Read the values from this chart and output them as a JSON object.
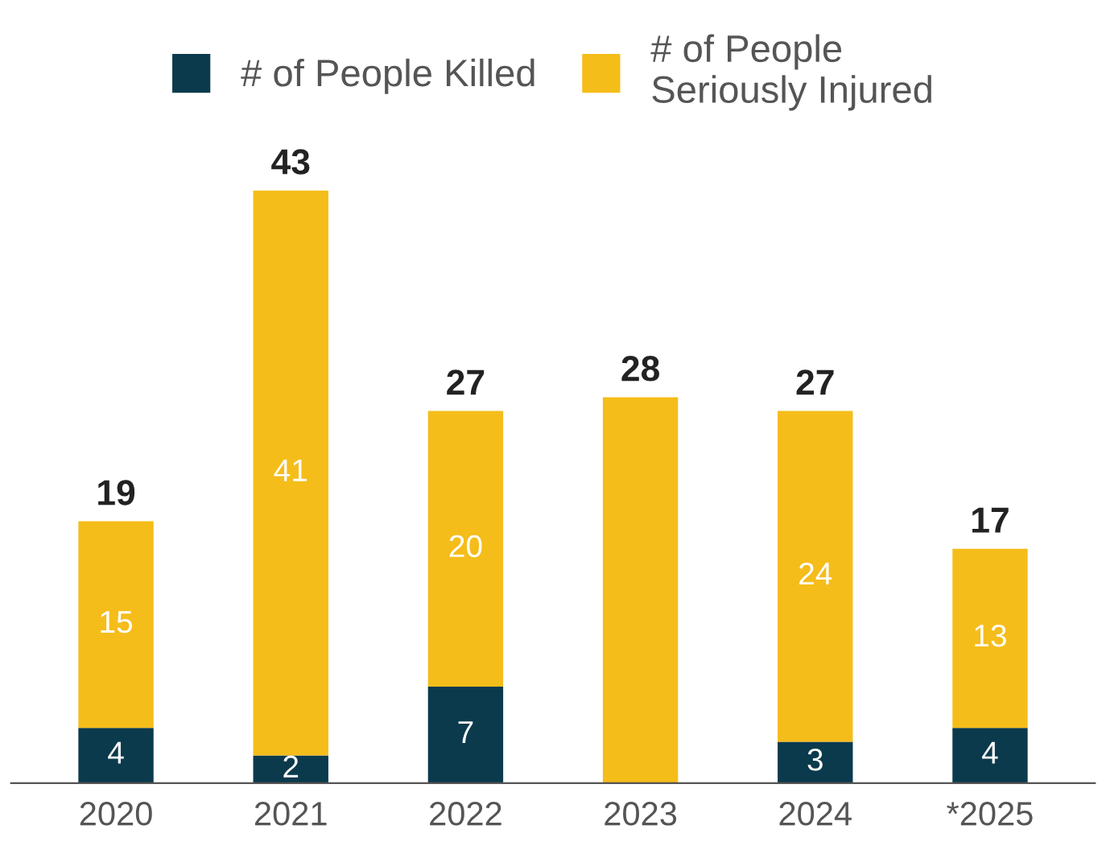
{
  "chart_data": {
    "type": "bar",
    "stacked": true,
    "categories": [
      "2020",
      "2021",
      "2022",
      "2023",
      "2024",
      "*2025"
    ],
    "series": [
      {
        "name": "# of People Killed",
        "color": "#0b3a4d",
        "values": [
          4,
          2,
          7,
          0,
          3,
          4
        ],
        "value_labels": [
          "4",
          "2",
          "7",
          null,
          "3",
          "4"
        ]
      },
      {
        "name": "# of People\nSeriously Injured",
        "color": "#f5bd1a",
        "values": [
          15,
          41,
          20,
          28,
          24,
          13
        ],
        "value_labels": [
          "15",
          "41",
          "20",
          null,
          "24",
          "13"
        ]
      }
    ],
    "totals": [
      "19",
      "43",
      "27",
      "28",
      "27",
      "17"
    ],
    "legend": "top",
    "grid": false
  }
}
